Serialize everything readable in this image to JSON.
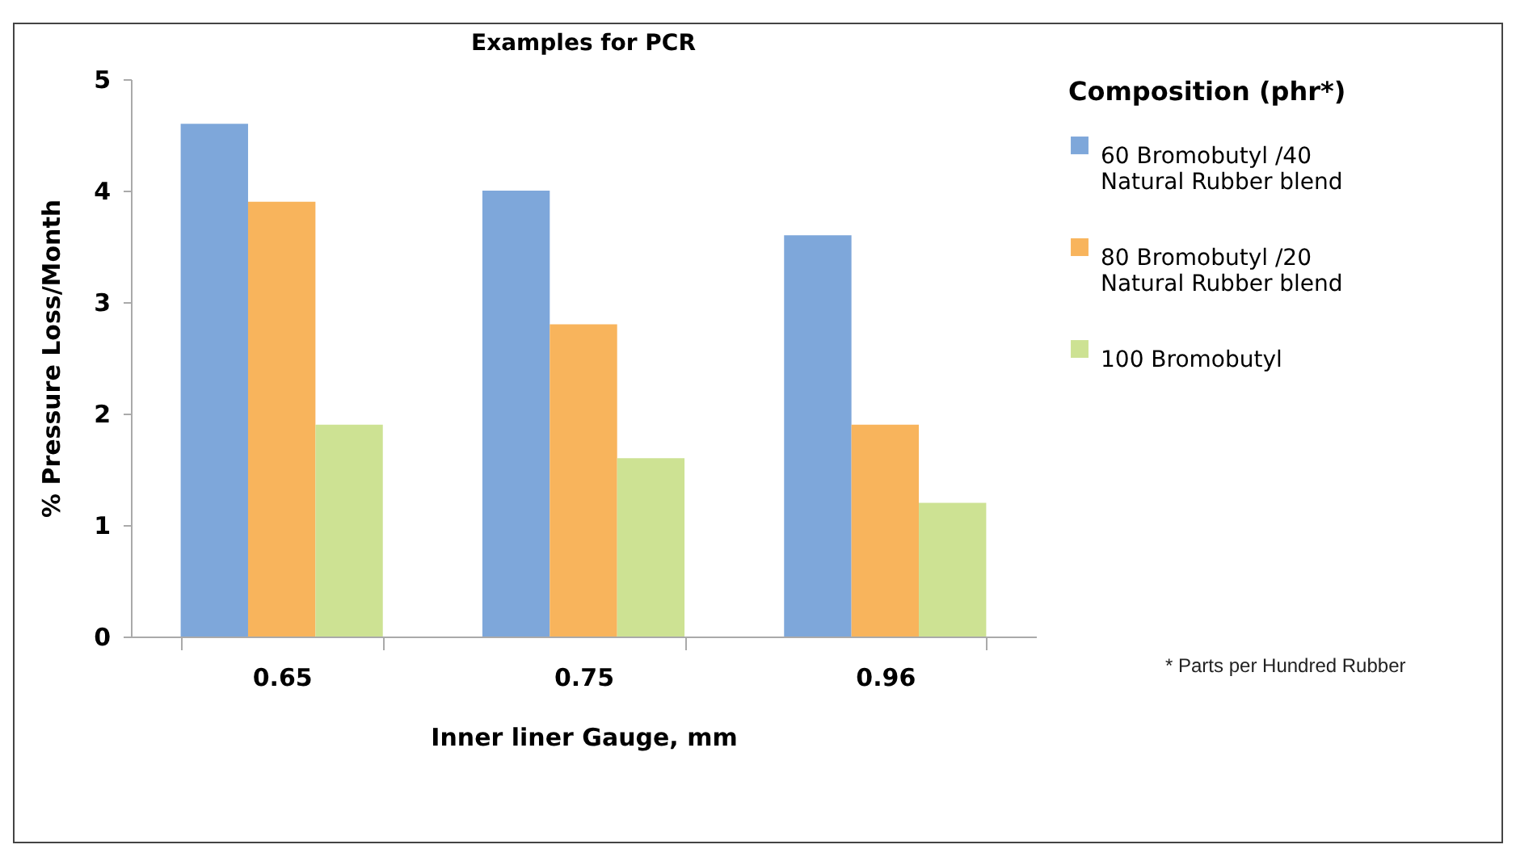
{
  "chart_data": {
    "type": "bar",
    "title": "Examples for PCR",
    "xlabel": "Inner liner Gauge, mm",
    "ylabel": "% Pressure  Loss/Month",
    "legend_title": "Composition (phr*)",
    "categories": [
      "0.65",
      "0.75",
      "0.96"
    ],
    "series": [
      {
        "name": "60 Bromobutyl /40 Natural Rubber blend",
        "color": "#7ea7da",
        "values": [
          4.6,
          4.0,
          3.6
        ]
      },
      {
        "name": "80 Bromobutyl /20 Natural Rubber blend",
        "color": "#f8b45c",
        "values": [
          3.9,
          2.8,
          1.9
        ]
      },
      {
        "name": "100 Bromobutyl",
        "color": "#cde293",
        "values": [
          1.9,
          1.6,
          1.2
        ]
      }
    ],
    "ylim": [
      0,
      5
    ],
    "yticks": [
      0,
      1,
      2,
      3,
      4,
      5
    ],
    "grid": false,
    "legend": "right",
    "annotations": [
      "* Parts per Hundred Rubber"
    ]
  }
}
